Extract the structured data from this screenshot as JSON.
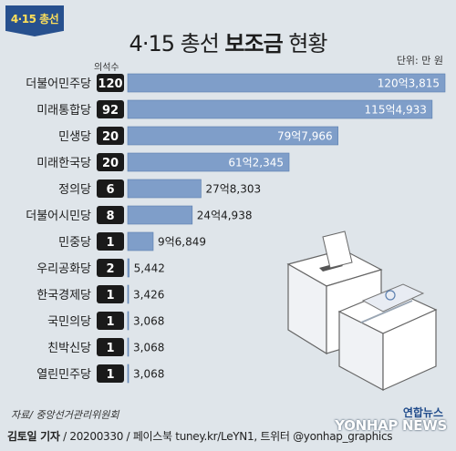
{
  "badge": "4·15 총선",
  "title_prefix": "4·15 총선 ",
  "title_bold": "보조금",
  "title_suffix": " 현황",
  "unit": "단위: 만 원",
  "seats_header": "의석수",
  "source": "자료/ 중앙선거관리위원회",
  "credit": {
    "author": "김토일 기자",
    "rest": " / 20200330 / 페이스북 tuney.kr/LeYN1, 트위터 @yonhap_graphics"
  },
  "logo": {
    "top": "연합뉴스",
    "bottom": "YONHAP NEWS"
  },
  "colors": {
    "bar": "#7f9ec9",
    "bar_stroke": "#5b7faf",
    "seat_box": "#1a1a1a",
    "background": "#dfe5ea"
  },
  "chart_data": {
    "type": "bar",
    "orientation": "horizontal",
    "categories": [
      "더불어민주당",
      "미래통합당",
      "민생당",
      "미래한국당",
      "정의당",
      "더불어시민당",
      "민중당",
      "우리공화당",
      "한국경제당",
      "국민의당",
      "친박신당",
      "열린민주당"
    ],
    "seats": [
      120,
      92,
      20,
      20,
      6,
      8,
      1,
      2,
      1,
      1,
      1,
      1
    ],
    "values": [
      1203815,
      1154933,
      797966,
      612345,
      278303,
      244938,
      96849,
      5442,
      3426,
      3068,
      3068,
      3068
    ],
    "value_labels": [
      "120억3,815",
      "115억4,933",
      "79억7,966",
      "61억2,345",
      "27억8,303",
      "24억4,938",
      "9억6,849",
      "5,442",
      "3,426",
      "3,068",
      "3,068",
      "3,068"
    ],
    "xlim": [
      0,
      1203815
    ],
    "grid": false,
    "legend": "none"
  }
}
